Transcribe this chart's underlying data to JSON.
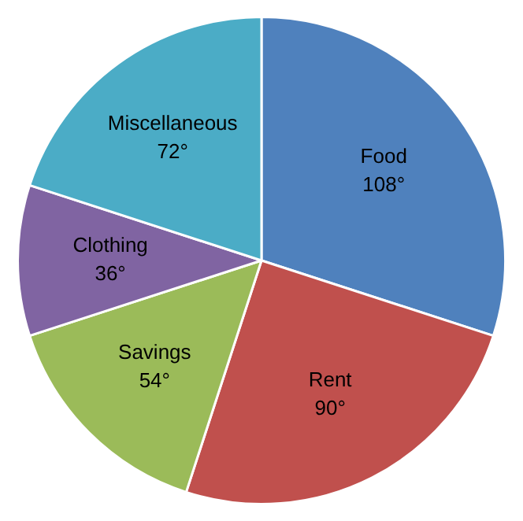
{
  "chart_data": {
    "type": "pie",
    "categories": [
      "Food",
      "Rent",
      "Savings",
      "Clothing",
      "Miscellaneous"
    ],
    "values": [
      108,
      90,
      54,
      36,
      72
    ],
    "colors": [
      "#4f81bd",
      "#c0504d",
      "#9bbb59",
      "#8064a2",
      "#4bacc6"
    ],
    "value_labels": [
      "108°",
      "90°",
      "54°",
      "36°",
      "72°"
    ],
    "legend": false
  }
}
